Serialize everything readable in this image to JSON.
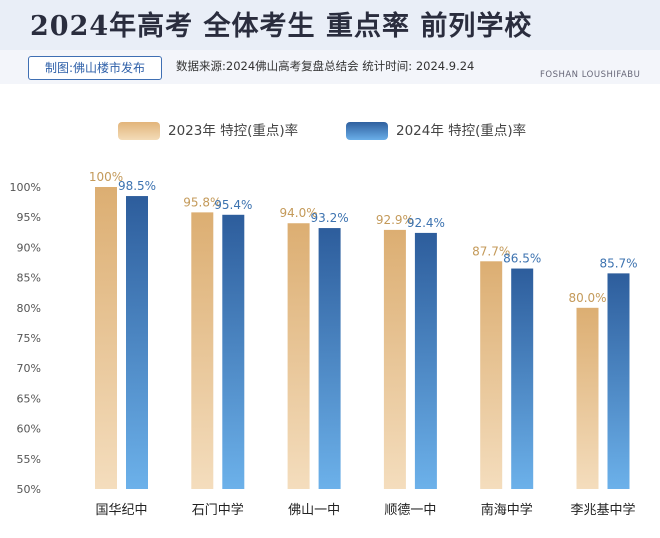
{
  "header": {
    "title": "2024年高考 全体考生 重点率 前列学校",
    "tag": "制图:佛山楼市发布",
    "source": "数据来源:2024佛山高考复盘总结会  统计时间: 2024.9.24",
    "brand": "FOSHAN LOUSHIFABU"
  },
  "colors": {
    "bar_2023": "#e3b67c",
    "bar_2024": "#3a75b8"
  },
  "chart_data": {
    "type": "bar",
    "categories": [
      "国华纪中",
      "石门中学",
      "佛山一中",
      "顺德一中",
      "南海中学",
      "李兆基中学"
    ],
    "series": [
      {
        "name": "2023年 特控(重点)率",
        "values": [
          100,
          95.8,
          94.0,
          92.9,
          87.7,
          80.0
        ],
        "labels": [
          "100%",
          "95.8%",
          "94.0%",
          "92.9%",
          "87.7%",
          "80.0%"
        ]
      },
      {
        "name": "2024年 特控(重点)率",
        "values": [
          98.5,
          95.4,
          93.2,
          92.4,
          86.5,
          85.7
        ],
        "labels": [
          "98.5%",
          "95.4%",
          "93.2%",
          "92.4%",
          "86.5%",
          "85.7%"
        ]
      }
    ],
    "ylim": [
      50,
      100
    ],
    "yticks": [
      "50%",
      "55%",
      "60%",
      "65%",
      "70%",
      "75%",
      "80%",
      "85%",
      "90%",
      "95%",
      "100%"
    ],
    "grid": false,
    "legend": "top"
  }
}
